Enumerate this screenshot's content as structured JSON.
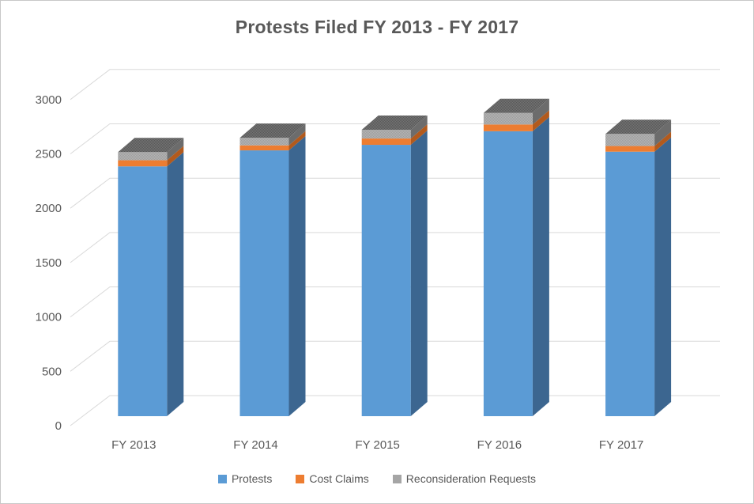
{
  "chart_data": {
    "type": "bar",
    "subtype": "3d-stacked-column",
    "title": "Protests Filed FY 2013 - FY 2017",
    "categories": [
      "FY 2013",
      "FY 2014",
      "FY 2015",
      "FY 2016",
      "FY 2017"
    ],
    "series": [
      {
        "name": "Protests",
        "color": "#5B9BD5",
        "side_color": "#3C6690",
        "values": [
          2298,
          2445,
          2496,
          2621,
          2433
        ]
      },
      {
        "name": "Cost Claims",
        "color": "#ED7D31",
        "side_color": "#B25A1D",
        "values": [
          56,
          46,
          58,
          62,
          52
        ]
      },
      {
        "name": "Reconsideration Requests",
        "color": "#A5A5A5",
        "side_color": "#6C6C6C",
        "values": [
          75,
          70,
          81,
          106,
          111
        ]
      }
    ],
    "totals": [
      2429,
      2561,
      2635,
      2789,
      2596
    ],
    "ylim": [
      0,
      3000
    ],
    "ytick_interval": 500,
    "ytick_labels": [
      "0",
      "500",
      "1000",
      "1500",
      "2000",
      "2500",
      "3000"
    ],
    "grid": true,
    "legend_position": "bottom",
    "xlabel": "",
    "ylabel": ""
  },
  "colors": {
    "text": "#595959",
    "gridline": "#D9D9D9",
    "background": "#FFFFFF",
    "frame": "#C8C8C8",
    "gray_front_dither": [
      "#B5B5B5",
      "#9D9D9D"
    ],
    "gray_top_dither": [
      "#767676",
      "#575757"
    ]
  }
}
